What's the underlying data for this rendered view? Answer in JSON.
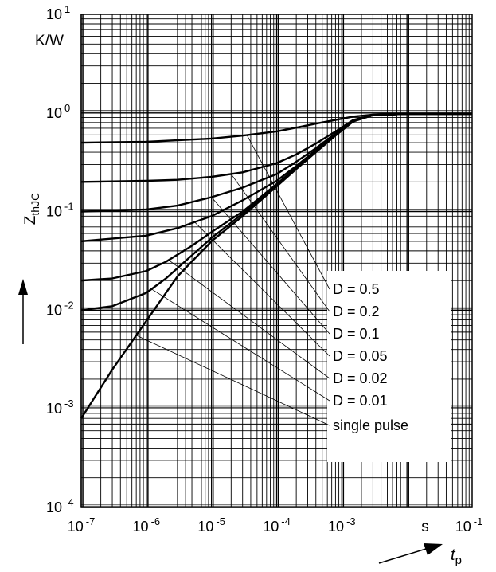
{
  "chart_data": {
    "type": "line",
    "xscale": "log",
    "yscale": "log",
    "xlim": [
      1e-07,
      0.1
    ],
    "ylim": [
      0.0001,
      10
    ],
    "y_unit": "K/W",
    "x_unit": "s",
    "ylabel": {
      "main": "Z",
      "sub": "thJC"
    },
    "xlabel": {
      "main": "t",
      "sub": "p"
    },
    "x_ticks": [
      {
        "value": 1e-07,
        "base": "10",
        "exp": "-7"
      },
      {
        "value": 1e-06,
        "base": "10",
        "exp": "-6"
      },
      {
        "value": 1e-05,
        "base": "10",
        "exp": "-5"
      },
      {
        "value": 0.0001,
        "base": "10",
        "exp": "-4"
      },
      {
        "value": 0.001,
        "base": "10",
        "exp": "-3"
      },
      {
        "value": 0.1,
        "base": "10",
        "exp": "-1"
      }
    ],
    "y_ticks": [
      {
        "value": 10,
        "base": "10",
        "exp": "1"
      },
      {
        "value": 1,
        "base": "10",
        "exp": "0"
      },
      {
        "value": 0.1,
        "base": "10",
        "exp": "-1"
      },
      {
        "value": 0.01,
        "base": "10",
        "exp": "-2"
      },
      {
        "value": 0.001,
        "base": "10",
        "exp": "-3"
      },
      {
        "value": 0.0001,
        "base": "10",
        "exp": "-4"
      }
    ],
    "grid": true,
    "legend_position": "right, inside plot",
    "series": [
      {
        "name": "D = 0.5",
        "x": [
          1e-07,
          1e-06,
          1e-05,
          3e-05,
          0.0001,
          0.0002,
          0.0004,
          0.0008,
          0.0015,
          0.003,
          0.01,
          0.1
        ],
        "y": [
          0.5,
          0.51,
          0.55,
          0.59,
          0.65,
          0.71,
          0.78,
          0.85,
          0.92,
          0.96,
          0.98,
          0.98
        ]
      },
      {
        "name": "D = 0.2",
        "x": [
          1e-07,
          1e-06,
          3e-06,
          1e-05,
          3e-05,
          0.0001,
          0.0002,
          0.0004,
          0.0008,
          0.0015,
          0.003,
          0.01,
          0.1
        ],
        "y": [
          0.2,
          0.205,
          0.21,
          0.225,
          0.25,
          0.31,
          0.38,
          0.49,
          0.65,
          0.85,
          0.95,
          0.98,
          0.98
        ]
      },
      {
        "name": "D = 0.1",
        "x": [
          1e-07,
          1e-06,
          3e-06,
          1e-05,
          3e-05,
          0.0001,
          0.0002,
          0.0004,
          0.0008,
          0.0015,
          0.003,
          0.01,
          0.1
        ],
        "y": [
          0.1,
          0.105,
          0.115,
          0.14,
          0.175,
          0.24,
          0.32,
          0.44,
          0.62,
          0.84,
          0.95,
          0.98,
          0.98
        ]
      },
      {
        "name": "D = 0.05",
        "x": [
          1e-07,
          1e-06,
          3e-06,
          1e-05,
          3e-05,
          0.0001,
          0.0002,
          0.0004,
          0.0008,
          0.0015,
          0.003,
          0.01,
          0.1
        ],
        "y": [
          0.05,
          0.057,
          0.068,
          0.09,
          0.13,
          0.205,
          0.29,
          0.42,
          0.61,
          0.83,
          0.95,
          0.98,
          0.98
        ]
      },
      {
        "name": "D = 0.02",
        "x": [
          1e-07,
          3e-07,
          1e-06,
          2e-06,
          5e-06,
          1e-05,
          3e-05,
          0.0001,
          0.0002,
          0.0004,
          0.0008,
          0.0015,
          0.003,
          0.01,
          0.1
        ],
        "y": [
          0.02,
          0.021,
          0.025,
          0.031,
          0.045,
          0.062,
          0.1,
          0.19,
          0.28,
          0.41,
          0.6,
          0.83,
          0.95,
          0.98,
          0.98
        ]
      },
      {
        "name": "D = 0.01",
        "x": [
          1e-07,
          3e-07,
          1e-06,
          2e-06,
          5e-06,
          1e-05,
          3e-05,
          0.0001,
          0.0002,
          0.0004,
          0.0008,
          0.0015,
          0.003,
          0.01,
          0.1
        ],
        "y": [
          0.01,
          0.011,
          0.015,
          0.021,
          0.036,
          0.054,
          0.095,
          0.185,
          0.275,
          0.41,
          0.6,
          0.83,
          0.95,
          0.98,
          0.98
        ]
      },
      {
        "name": "single pulse",
        "x": [
          1e-07,
          3e-07,
          1e-06,
          3e-06,
          1e-05,
          3e-05,
          0.0001,
          0.0002,
          0.0004,
          0.0008,
          0.0015,
          0.003,
          0.01,
          0.1
        ],
        "y": [
          0.0008,
          0.0025,
          0.0078,
          0.022,
          0.05,
          0.09,
          0.18,
          0.27,
          0.4,
          0.59,
          0.82,
          0.95,
          0.98,
          0.98
        ]
      }
    ]
  }
}
